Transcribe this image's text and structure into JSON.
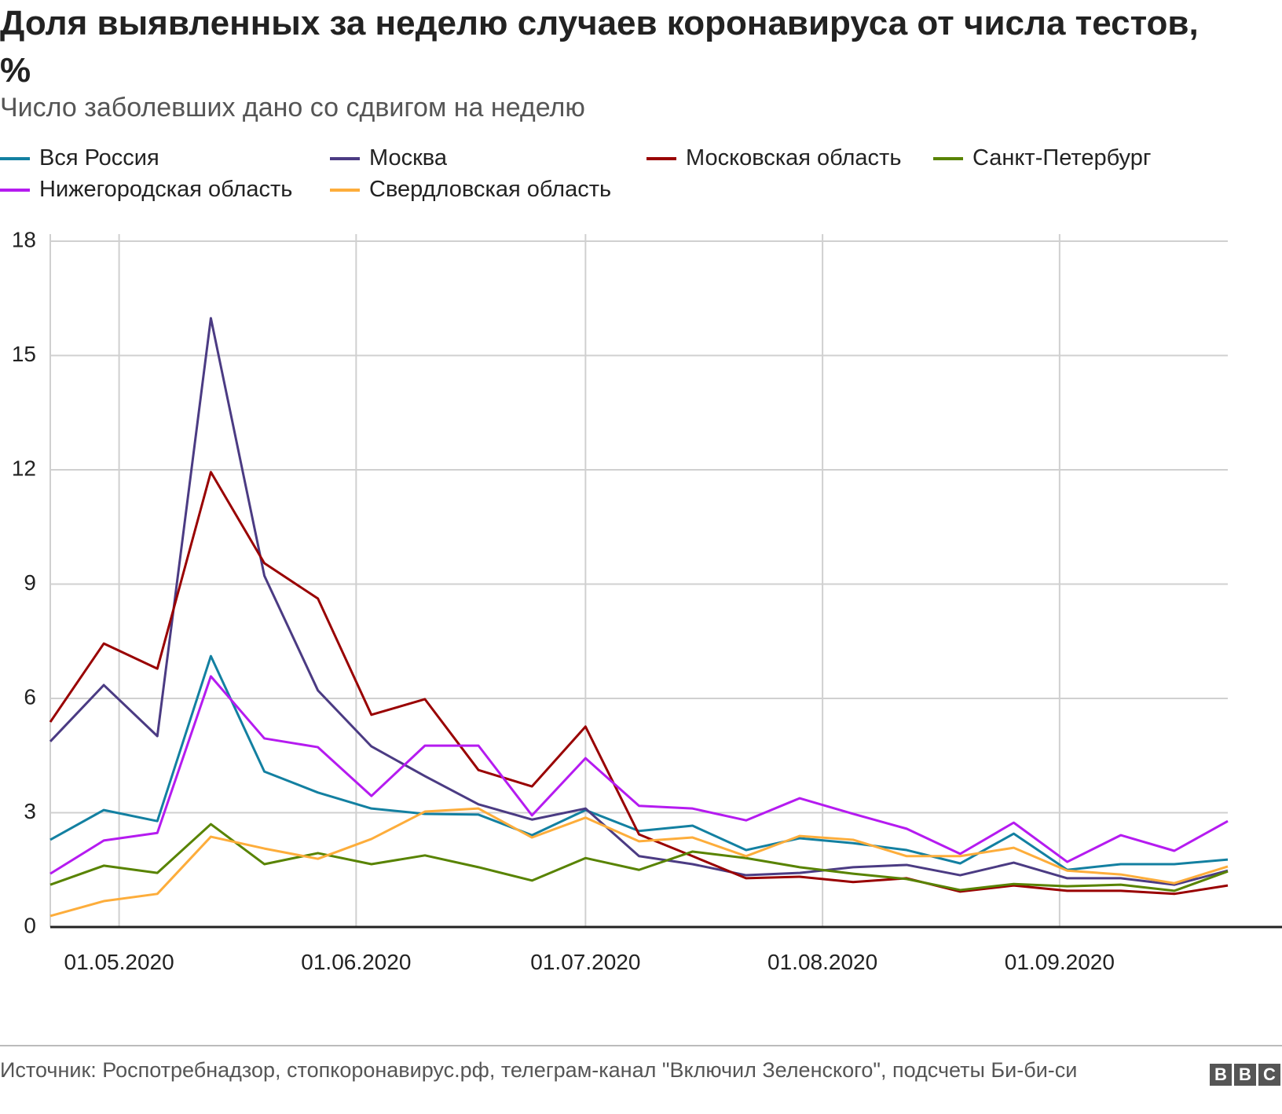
{
  "chart_data": {
    "type": "line",
    "title": "Доля выявленных за неделю случаев коронавируса от числа тестов, %",
    "subtitle": "Число заболевших дано со сдвигом на неделю",
    "source": "Источник: Роспотребнадзор, стопкоронавирус.рф, телеграм-канал \"Включил Зеленского\", подсчеты Би-би-си",
    "logo": [
      "B",
      "B",
      "C"
    ],
    "x": [
      "22.04.2020",
      "29.04.2020",
      "06.05.2020",
      "13.05.2020",
      "20.05.2020",
      "27.05.2020",
      "03.06.2020",
      "10.06.2020",
      "17.06.2020",
      "24.06.2020",
      "01.07.2020",
      "08.07.2020",
      "15.07.2020",
      "22.07.2020",
      "29.07.2020",
      "05.08.2020",
      "12.08.2020",
      "19.08.2020",
      "26.08.2020",
      "02.09.2020",
      "09.09.2020",
      "16.09.2020",
      "23.09.2020"
    ],
    "xlim": [
      "22.04.2020",
      "23.09.2020"
    ],
    "xticks": [
      "01.05.2020",
      "01.06.2020",
      "01.07.2020",
      "01.08.2020",
      "01.09.2020"
    ],
    "ylim": [
      0,
      18
    ],
    "yticks": [
      0,
      3,
      6,
      9,
      12,
      15,
      18
    ],
    "grid": true,
    "series": [
      {
        "name": "Вся Россия",
        "color": "#1380a1",
        "values": [
          2.29,
          3.07,
          2.78,
          7.11,
          4.08,
          3.53,
          3.11,
          2.97,
          2.95,
          2.41,
          3.07,
          2.52,
          2.66,
          2.02,
          2.33,
          2.2,
          2.02,
          1.67,
          2.45,
          1.5,
          1.65,
          1.65,
          1.77
        ]
      },
      {
        "name": "Москва",
        "color": "#4b3b83",
        "values": [
          4.87,
          6.35,
          5.01,
          15.98,
          9.22,
          6.21,
          4.74,
          3.96,
          3.22,
          2.82,
          3.11,
          1.86,
          1.65,
          1.36,
          1.42,
          1.57,
          1.63,
          1.36,
          1.69,
          1.28,
          1.28,
          1.11,
          1.48
        ]
      },
      {
        "name": "Московская область",
        "color": "#990000",
        "values": [
          5.38,
          7.44,
          6.78,
          11.94,
          9.55,
          8.62,
          5.57,
          5.98,
          4.12,
          3.69,
          5.26,
          2.43,
          1.86,
          1.28,
          1.32,
          1.18,
          1.28,
          0.93,
          1.09,
          0.95,
          0.95,
          0.87,
          1.09
        ]
      },
      {
        "name": "Санкт-Петербург",
        "color": "#588300",
        "values": [
          1.11,
          1.61,
          1.42,
          2.7,
          1.65,
          1.94,
          1.65,
          1.88,
          1.57,
          1.22,
          1.81,
          1.5,
          1.98,
          1.81,
          1.57,
          1.4,
          1.26,
          0.97,
          1.13,
          1.07,
          1.11,
          0.95,
          1.46
        ]
      },
      {
        "name": "Нижегородская область",
        "color": "#b51bf0",
        "values": [
          1.4,
          2.27,
          2.47,
          6.58,
          4.95,
          4.72,
          3.44,
          4.76,
          4.76,
          2.93,
          4.43,
          3.18,
          3.11,
          2.8,
          3.38,
          2.97,
          2.58,
          1.92,
          2.74,
          1.71,
          2.41,
          2.0,
          2.78
        ]
      },
      {
        "name": "Свердловская область",
        "color": "#fdad3b",
        "values": [
          0.29,
          0.68,
          0.87,
          2.37,
          2.06,
          1.79,
          2.31,
          3.03,
          3.11,
          2.35,
          2.87,
          2.25,
          2.35,
          1.86,
          2.39,
          2.29,
          1.86,
          1.86,
          2.08,
          1.48,
          1.38,
          1.15,
          1.59
        ]
      }
    ]
  }
}
